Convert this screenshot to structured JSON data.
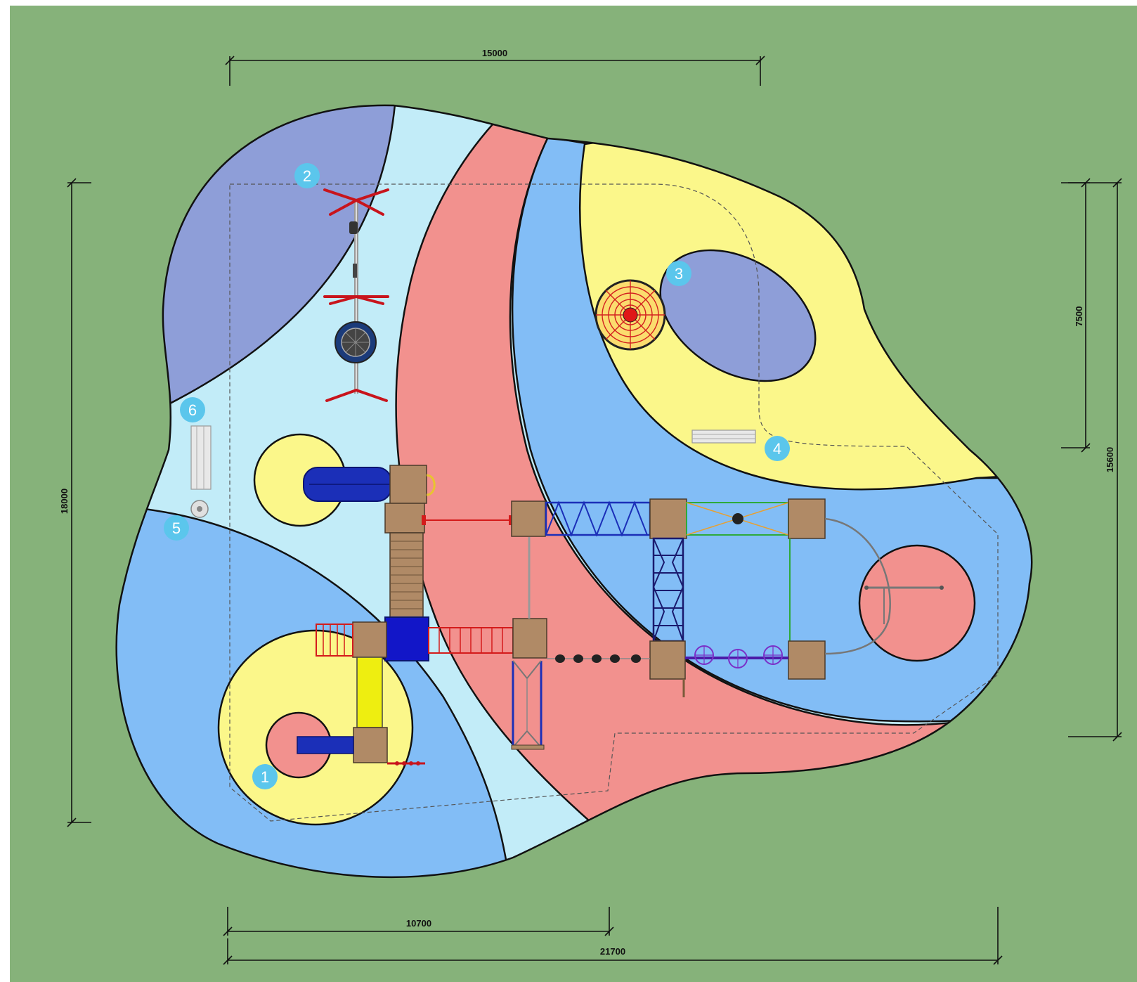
{
  "dimensions": {
    "top_width": "15000",
    "left_height": "18000",
    "right_upper": "7500",
    "right_total": "15600",
    "bottom_partial": "10700",
    "bottom_total": "21700"
  },
  "markers": [
    "1",
    "2",
    "3",
    "4",
    "5",
    "6"
  ],
  "colors": {
    "grass": "#86b27a",
    "light_blue": "#c2ecf8",
    "mid_blue": "#82bdf6",
    "lavender": "#8e9ed8",
    "pink": "#f2918e",
    "yellow": "#fbf78a",
    "marker": "#5bc6ec",
    "slide_blue": "#1b2fb8",
    "slide_yellow": "#eeee10",
    "wood": "#b08a66",
    "frame_red": "#d41b1b",
    "frame_green": "#2eaa3a"
  }
}
